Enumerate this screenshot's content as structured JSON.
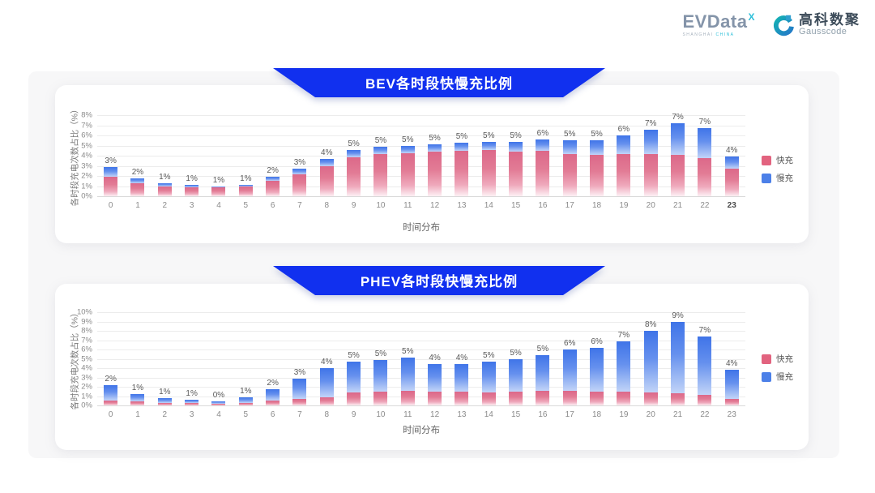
{
  "header": {
    "evdata": {
      "name": "EVData",
      "sup": "X",
      "sub_left": "SHANGHAI",
      "sub_right": "CHINA"
    },
    "gausscode": {
      "cn": "高科数聚",
      "en": "Gausscode"
    }
  },
  "colors": {
    "banner_blue": "#1130ef",
    "fast_pink": "#e2637f",
    "slow_blue": "#4c80e8"
  },
  "chart_data": [
    {
      "type": "bar",
      "stacked": true,
      "title": "BEV各时段快慢充比例",
      "xlabel": "时间分布",
      "ylabel": "各时段充电次数占比（%）",
      "ylim": [
        0,
        8
      ],
      "ytick_step": 1,
      "grid": true,
      "legend_position": "right",
      "categories": [
        "0",
        "1",
        "2",
        "3",
        "4",
        "5",
        "6",
        "7",
        "8",
        "9",
        "10",
        "11",
        "12",
        "13",
        "14",
        "15",
        "16",
        "17",
        "18",
        "19",
        "20",
        "21",
        "22",
        "23"
      ],
      "emphasized_tick": "23",
      "series": [
        {
          "name": "快充",
          "color_key": "fast",
          "values": [
            1.9,
            1.3,
            1.0,
            0.85,
            0.85,
            0.95,
            1.5,
            2.2,
            3.0,
            3.85,
            4.15,
            4.25,
            4.4,
            4.5,
            4.55,
            4.4,
            4.5,
            4.2,
            4.1,
            4.2,
            4.2,
            4.1,
            3.8,
            2.7
          ]
        },
        {
          "name": "慢充",
          "color_key": "slow",
          "values": [
            1.0,
            0.5,
            0.3,
            0.25,
            0.1,
            0.2,
            0.4,
            0.55,
            0.65,
            0.7,
            0.7,
            0.7,
            0.75,
            0.8,
            0.85,
            1.0,
            1.1,
            1.3,
            1.4,
            1.8,
            2.4,
            3.1,
            2.9,
            1.2
          ]
        }
      ],
      "total_labels": [
        "3%",
        "2%",
        "1%",
        "1%",
        "1%",
        "1%",
        "2%",
        "3%",
        "4%",
        "5%",
        "5%",
        "5%",
        "5%",
        "5%",
        "5%",
        "5%",
        "6%",
        "5%",
        "5%",
        "6%",
        "7%",
        "7%",
        "7%",
        "4%"
      ]
    },
    {
      "type": "bar",
      "stacked": true,
      "title": "PHEV各时段快慢充比例",
      "xlabel": "时间分布",
      "ylabel": "各时段充电次数占比（%）",
      "ylim": [
        0,
        10
      ],
      "ytick_step": 1,
      "grid": true,
      "legend_position": "right",
      "categories": [
        "0",
        "1",
        "2",
        "3",
        "4",
        "5",
        "6",
        "7",
        "8",
        "9",
        "10",
        "11",
        "12",
        "13",
        "14",
        "15",
        "16",
        "17",
        "18",
        "19",
        "20",
        "21",
        "22",
        "23"
      ],
      "emphasized_tick": null,
      "series": [
        {
          "name": "快充",
          "color_key": "fast",
          "values": [
            0.5,
            0.4,
            0.3,
            0.3,
            0.2,
            0.3,
            0.5,
            0.7,
            0.9,
            1.4,
            1.5,
            1.6,
            1.5,
            1.5,
            1.4,
            1.5,
            1.6,
            1.6,
            1.5,
            1.5,
            1.4,
            1.3,
            1.1,
            0.7
          ]
        },
        {
          "name": "慢充",
          "color_key": "slow",
          "values": [
            1.7,
            0.8,
            0.5,
            0.35,
            0.25,
            0.55,
            1.2,
            2.2,
            3.1,
            3.3,
            3.4,
            3.5,
            2.9,
            2.95,
            3.3,
            3.5,
            3.8,
            4.4,
            4.7,
            5.4,
            6.6,
            7.7,
            6.3,
            3.1
          ]
        }
      ],
      "total_labels": [
        "2%",
        "1%",
        "1%",
        "1%",
        "0%",
        "1%",
        "2%",
        "3%",
        "4%",
        "5%",
        "5%",
        "5%",
        "4%",
        "4%",
        "5%",
        "5%",
        "5%",
        "6%",
        "6%",
        "7%",
        "8%",
        "9%",
        "7%",
        "4%"
      ]
    }
  ]
}
